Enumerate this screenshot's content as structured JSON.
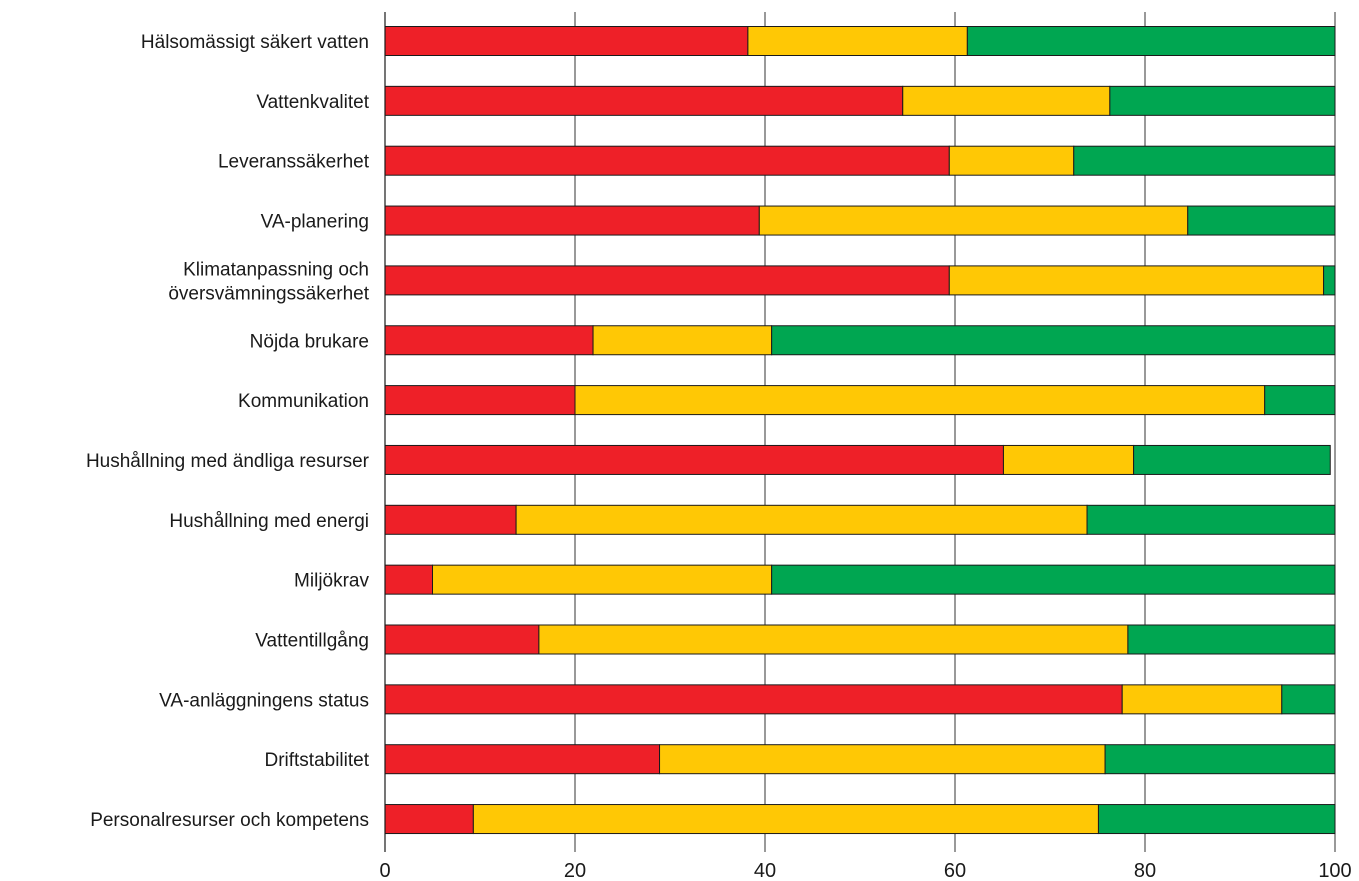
{
  "chart_data": {
    "type": "bar",
    "orientation": "horizontal",
    "stacked": true,
    "title": "",
    "xlabel": "",
    "ylabel": "",
    "xlim": [
      0,
      100
    ],
    "xticks": [
      0,
      20,
      40,
      60,
      80,
      100
    ],
    "grid": "vertical",
    "legend": "none",
    "categories": [
      "Hälsomässigt säkert vatten",
      "Vattenkvalitet",
      "Leveranssäkerhet",
      "VA-planering",
      "Klimatanpassning och översvämningssäkerhet",
      "Nöjda brukare",
      "Kommunikation",
      "Hushållning med ändliga resurser",
      "Hushållning med energi",
      "Miljökrav",
      "Vattentillgång",
      "VA-anläggningens status",
      "Driftstabilitet",
      "Personalresurser och kompetens"
    ],
    "category_lines": [
      [
        "Hälsomässigt säkert vatten"
      ],
      [
        "Vattenkvalitet"
      ],
      [
        "Leveranssäkerhet"
      ],
      [
        "VA-planering"
      ],
      [
        "Klimatanpassning och",
        "översvämningssäkerhet"
      ],
      [
        "Nöjda brukare"
      ],
      [
        "Kommunikation"
      ],
      [
        "Hushållning med ändliga resurser"
      ],
      [
        "Hushållning med energi"
      ],
      [
        "Miljökrav"
      ],
      [
        "Vattentillgång"
      ],
      [
        "VA-anläggningens status"
      ],
      [
        "Driftstabilitet"
      ],
      [
        "Personalresurser och kompetens"
      ]
    ],
    "series": [
      {
        "color": "#ee2028",
        "values": [
          38.2,
          54.5,
          59.4,
          39.4,
          59.4,
          21.9,
          20.0,
          65.1,
          13.8,
          5.0,
          16.2,
          77.6,
          28.9,
          9.3
        ]
      },
      {
        "color": "#ffc805",
        "values": [
          23.1,
          21.8,
          13.1,
          45.1,
          39.4,
          18.8,
          72.6,
          13.7,
          60.1,
          35.7,
          62.0,
          16.8,
          46.9,
          65.8
        ]
      },
      {
        "color": "#00a651",
        "values": [
          38.7,
          23.7,
          27.5,
          15.5,
          1.2,
          59.3,
          7.4,
          20.7,
          26.1,
          59.3,
          21.8,
          5.6,
          24.2,
          24.9
        ]
      }
    ]
  }
}
